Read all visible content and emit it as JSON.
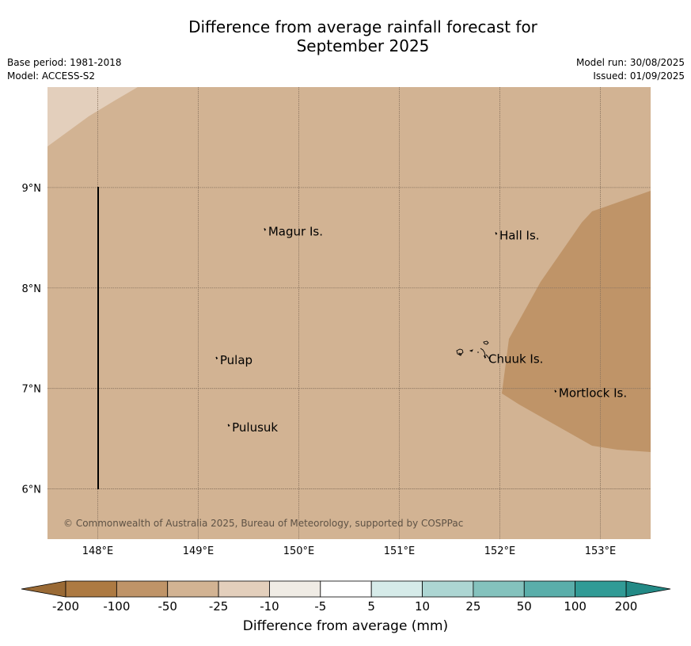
{
  "title_line1": "Difference from average rainfall forecast for",
  "title_line2": "September 2025",
  "meta": {
    "base_period": "Base period: 1981-2018",
    "model": "Model: ACCESS-S2",
    "model_run": "Model run: 30/08/2025",
    "issued": "Issued: 01/09/2025"
  },
  "map": {
    "lon_range": [
      147.5,
      153.5
    ],
    "lat_range": [
      5.5,
      10.0
    ],
    "lon_ticks": [
      148,
      149,
      150,
      151,
      152,
      153
    ],
    "lon_tick_labels": [
      "148°E",
      "149°E",
      "150°E",
      "151°E",
      "152°E",
      "153°E"
    ],
    "lat_ticks": [
      6,
      7,
      8,
      9
    ],
    "lat_tick_labels": [
      "6°N",
      "7°N",
      "8°N",
      "9°N"
    ],
    "background_category": "-50 to -25",
    "places": [
      {
        "name": "Magur Is.",
        "lon": 149.68,
        "lat": 8.57
      },
      {
        "name": "Hall Is.",
        "lon": 151.98,
        "lat": 8.53
      },
      {
        "name": "Pulap",
        "lon": 149.2,
        "lat": 7.29
      },
      {
        "name": "Chuuk Is.",
        "lon": 151.87,
        "lat": 7.3
      },
      {
        "name": "Mortlock Is.",
        "lon": 152.57,
        "lat": 6.96
      },
      {
        "name": "Pulusuk",
        "lon": 149.32,
        "lat": 6.62
      }
    ],
    "copyright": "© Commonwealth of Australia 2025, Bureau of Meteorology, supported by COSPPac"
  },
  "colorbar": {
    "label": "Difference from average (mm)",
    "ticks": [
      "-200",
      "-100",
      "-50",
      "-25",
      "-10",
      "-5",
      "5",
      "10",
      "25",
      "50",
      "100",
      "200"
    ],
    "colors": [
      "#ad7a42",
      "#bf9468",
      "#d2b393",
      "#e3cfbc",
      "#f0ece5",
      "#ffffff",
      "#d6ebe9",
      "#add6d3",
      "#84c2bd",
      "#5aaeaa",
      "#319b96"
    ],
    "under_color": "#9a6a35",
    "over_color": "#238a86"
  }
}
